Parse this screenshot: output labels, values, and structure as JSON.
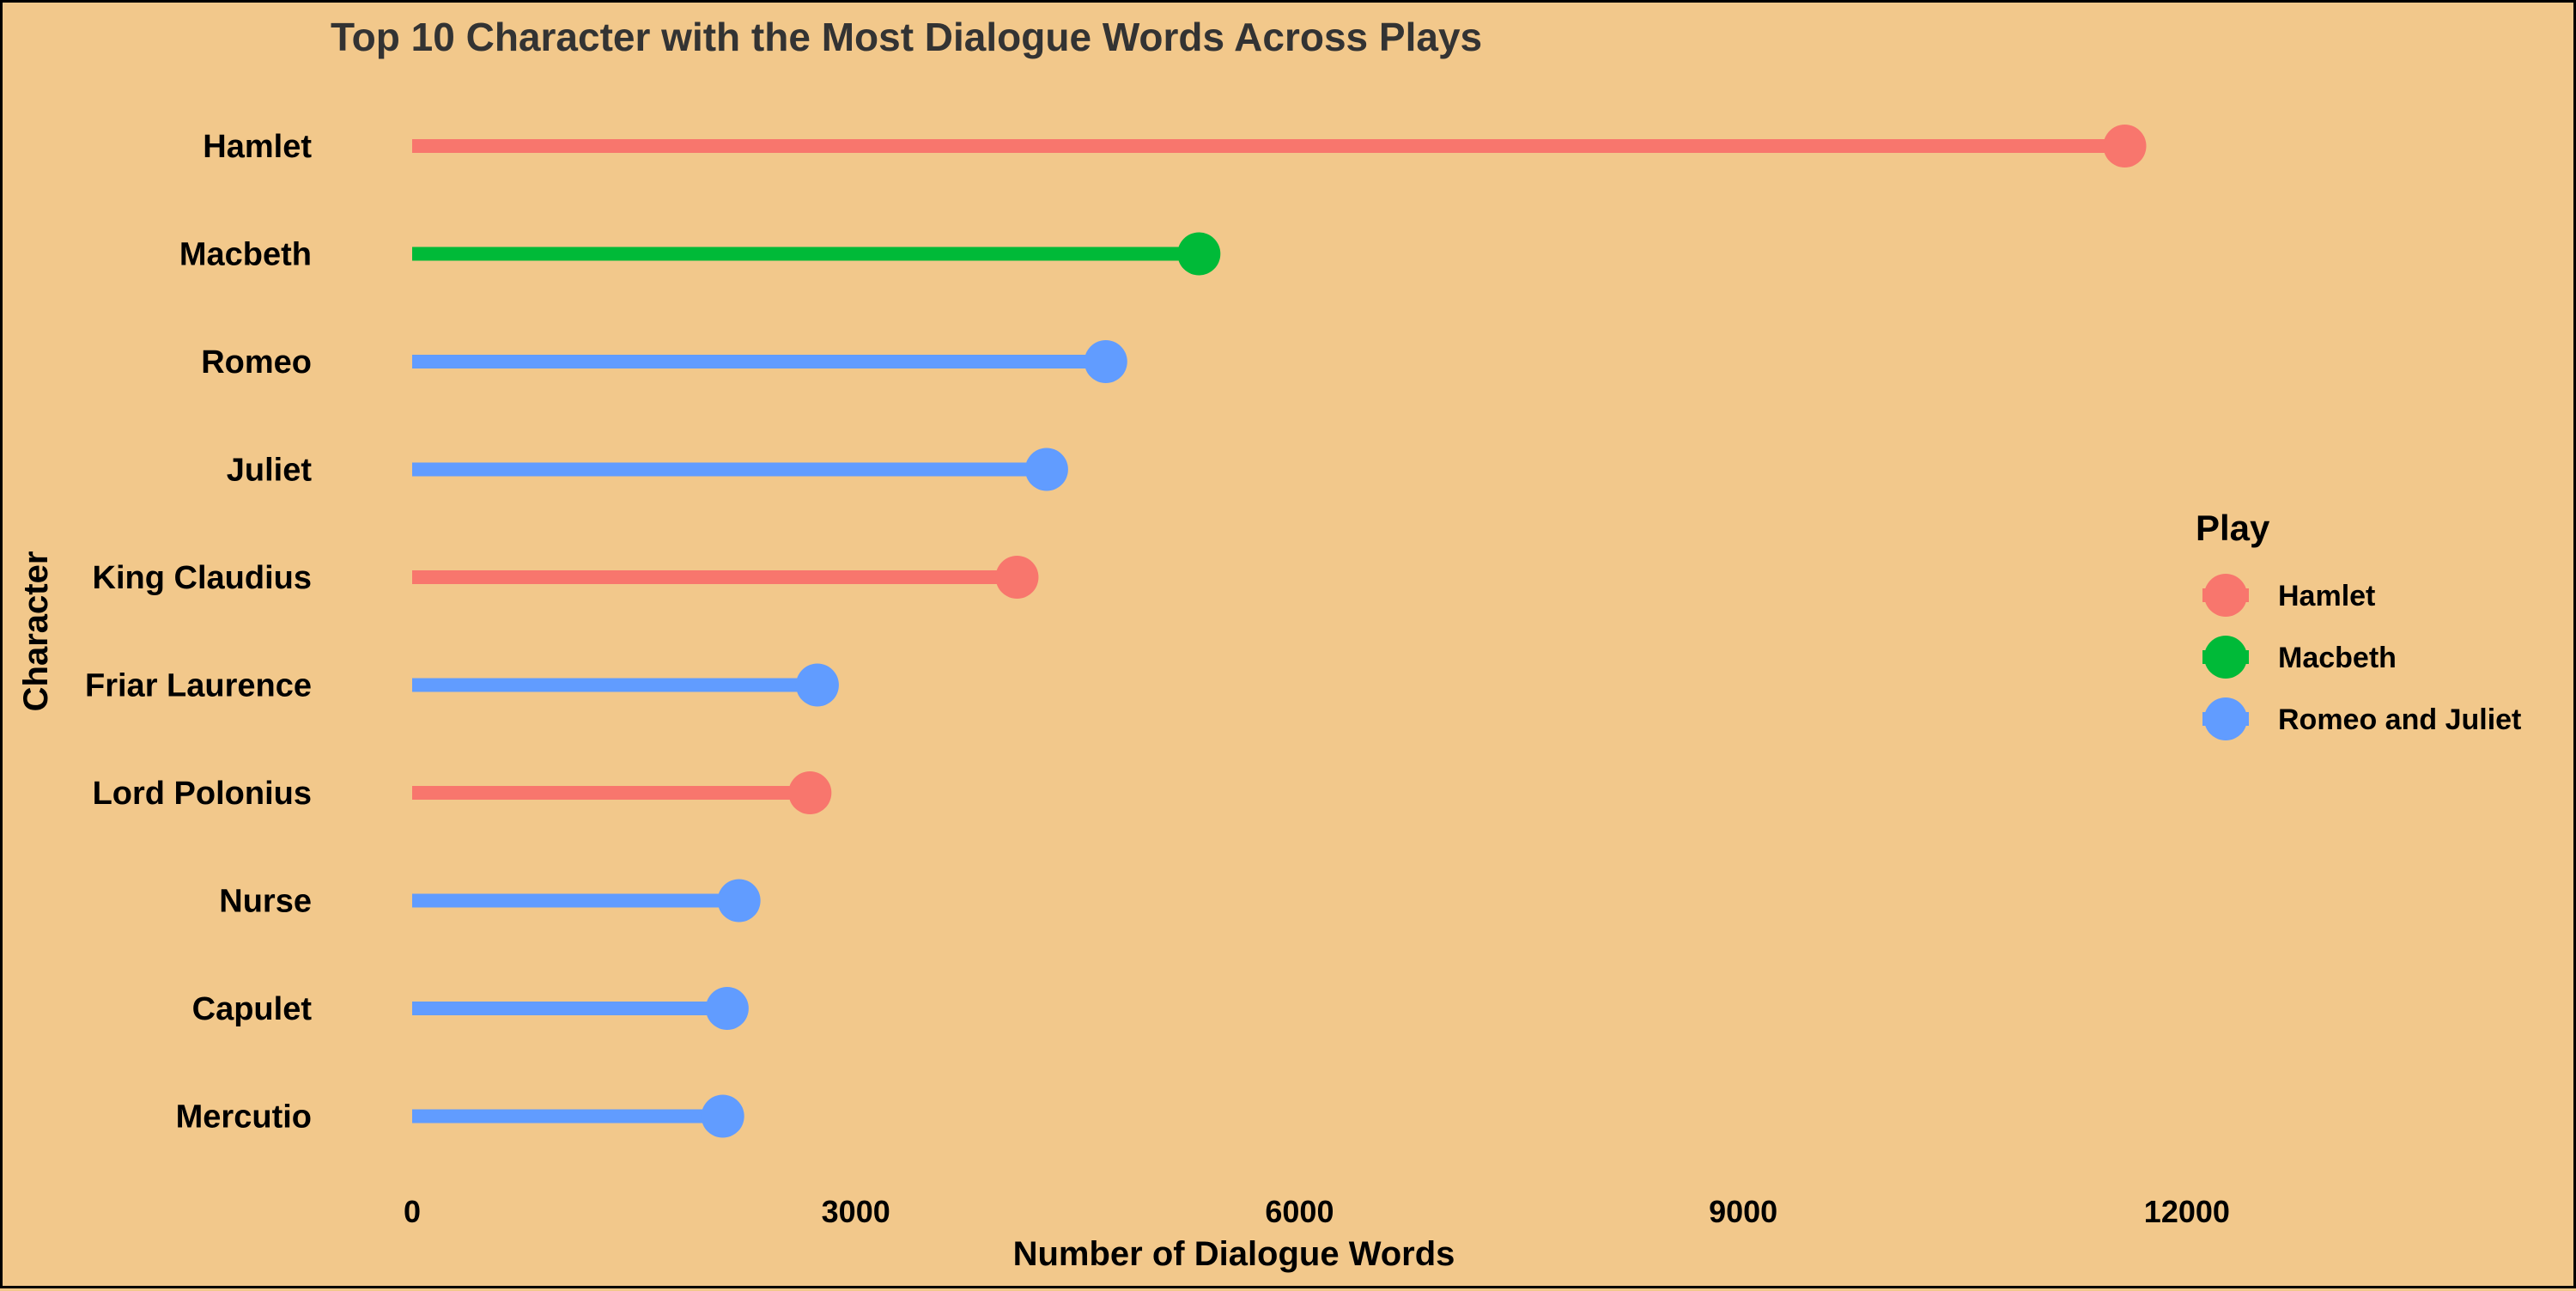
{
  "chart_data": {
    "type": "lollipop",
    "title": "Top 10 Character with the Most Dialogue Words Across Plays",
    "xlabel": "Number of Dialogue Words",
    "ylabel": "Character",
    "xlim": [
      0,
      14300
    ],
    "xticks": [
      0,
      3000,
      6000,
      9000,
      12000
    ],
    "grid": false,
    "legend": {
      "title": "Play",
      "position": "right",
      "entries": [
        {
          "name": "Hamlet",
          "color": "#f8766d"
        },
        {
          "name": "Macbeth",
          "color": "#00ba38"
        },
        {
          "name": "Romeo and Juliet",
          "color": "#619cff"
        }
      ]
    },
    "points": [
      {
        "character": "Hamlet",
        "play": "Hamlet",
        "value": 11580
      },
      {
        "character": "Macbeth",
        "play": "Macbeth",
        "value": 5320
      },
      {
        "character": "Romeo",
        "play": "Romeo and Juliet",
        "value": 4690
      },
      {
        "character": "Juliet",
        "play": "Romeo and Juliet",
        "value": 4290
      },
      {
        "character": "King Claudius",
        "play": "Hamlet",
        "value": 4090
      },
      {
        "character": "Friar Laurence",
        "play": "Romeo and Juliet",
        "value": 2740
      },
      {
        "character": "Lord Polonius",
        "play": "Hamlet",
        "value": 2690
      },
      {
        "character": "Nurse",
        "play": "Romeo and Juliet",
        "value": 2210
      },
      {
        "character": "Capulet",
        "play": "Romeo and Juliet",
        "value": 2130
      },
      {
        "character": "Mercutio",
        "play": "Romeo and Juliet",
        "value": 2100
      }
    ]
  }
}
